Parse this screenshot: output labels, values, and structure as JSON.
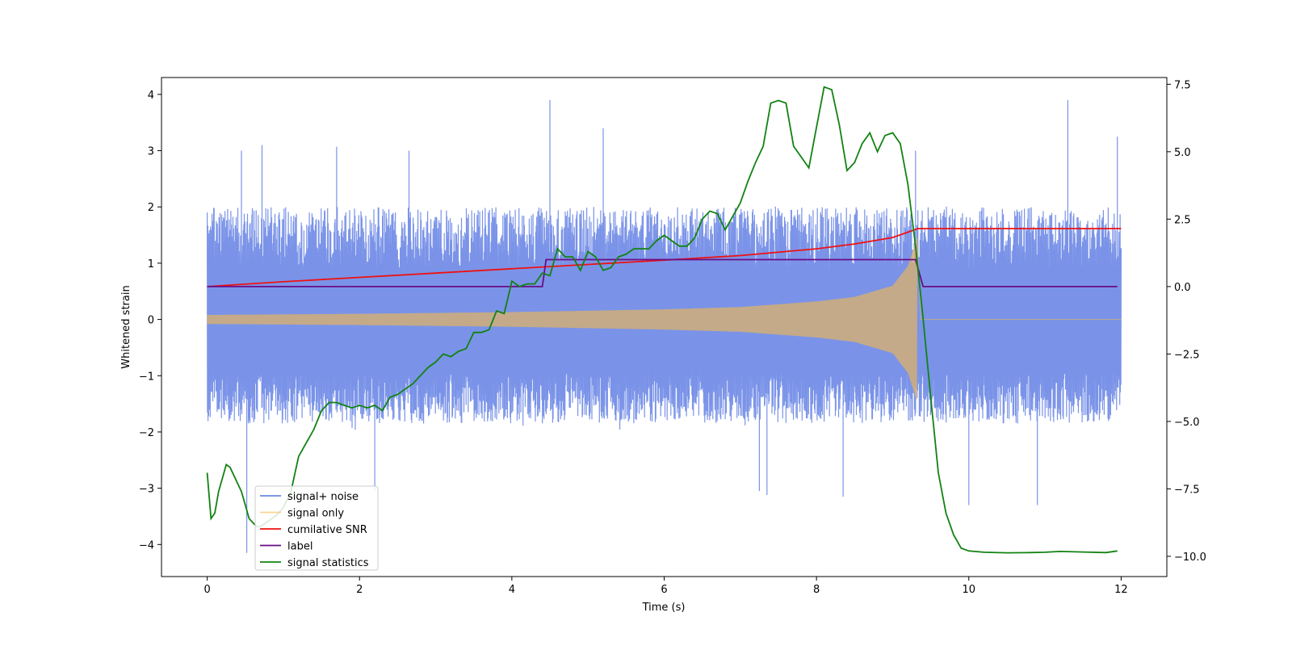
{
  "chart_data": {
    "type": "line",
    "title": "",
    "xlabel": "Time (s)",
    "ylabel": "Whitened strain",
    "y2label": "",
    "xlim": [
      -0.6,
      12.6
    ],
    "ylim": [
      -4.57,
      4.3
    ],
    "y2lim": [
      -10.75,
      7.75
    ],
    "xticks": [
      "0",
      "2",
      "4",
      "6",
      "8",
      "10",
      "12"
    ],
    "yticks": [
      "−4",
      "−3",
      "−2",
      "−1",
      "0",
      "1",
      "2",
      "3",
      "4"
    ],
    "y2ticks": [
      "−10.0",
      "−7.5",
      "−5.0",
      "−2.5",
      "0.0",
      "2.5",
      "5.0",
      "7.5"
    ],
    "grid": false,
    "legend_position": "lower-left",
    "colors": {
      "noise": "#6b87e6",
      "signal": "#f5b949",
      "snr": "#ee1111",
      "label": "#6a0c85",
      "stats": "#128212"
    },
    "series": [
      {
        "name": "signal+ noise",
        "axis": "left",
        "style": "dense-oscillation",
        "x_range": [
          0,
          12
        ],
        "band_typical": [
          -1.7,
          2.1
        ],
        "notable_peaks": [
          [
            0.45,
            3.0
          ],
          [
            0.72,
            3.1
          ],
          [
            1.7,
            3.07
          ],
          [
            2.65,
            3.0
          ],
          [
            4.5,
            3.9
          ],
          [
            5.2,
            3.4
          ],
          [
            9.3,
            3.0
          ],
          [
            11.3,
            3.9
          ],
          [
            11.95,
            3.25
          ]
        ],
        "notable_troughs": [
          [
            0.52,
            -4.15
          ],
          [
            2.2,
            -3.05
          ],
          [
            7.25,
            -3.05
          ],
          [
            7.35,
            -3.12
          ],
          [
            8.35,
            -3.15
          ],
          [
            10.0,
            -3.3
          ],
          [
            10.9,
            -3.3
          ]
        ]
      },
      {
        "name": "signal only",
        "axis": "left",
        "style": "chirp",
        "x_range": [
          0,
          12
        ],
        "merger_time": 9.32,
        "envelope": [
          [
            0,
            0.08
          ],
          [
            2,
            0.1
          ],
          [
            4,
            0.13
          ],
          [
            6,
            0.18
          ],
          [
            7,
            0.22
          ],
          [
            8,
            0.32
          ],
          [
            8.5,
            0.4
          ],
          [
            9.0,
            0.6
          ],
          [
            9.2,
            0.95
          ],
          [
            9.32,
            1.45
          ]
        ],
        "after_merger": 0.0
      },
      {
        "name": "cumilative SNR",
        "axis": "right",
        "style": "line",
        "x": [
          0,
          1,
          2,
          3,
          4,
          5,
          6,
          7,
          8,
          8.5,
          9.0,
          9.33,
          12
        ],
        "y": [
          0.0,
          0.18,
          0.34,
          0.5,
          0.66,
          0.82,
          0.98,
          1.15,
          1.4,
          1.58,
          1.82,
          2.15,
          2.15
        ]
      },
      {
        "name": "label",
        "axis": "right",
        "style": "step",
        "x": [
          0,
          4.4,
          4.45,
          9.3,
          9.4,
          11.95
        ],
        "y": [
          0.0,
          0.0,
          1.0,
          1.0,
          0.0,
          0.0
        ]
      },
      {
        "name": "signal statistics",
        "axis": "right",
        "style": "line",
        "x": [
          0,
          0.05,
          0.1,
          0.15,
          0.25,
          0.3,
          0.35,
          0.45,
          0.5,
          0.55,
          0.65,
          0.7,
          0.8,
          0.9,
          1.0,
          1.1,
          1.2,
          1.3,
          1.4,
          1.5,
          1.6,
          1.7,
          1.8,
          1.9,
          2.0,
          2.1,
          2.2,
          2.3,
          2.4,
          2.5,
          2.6,
          2.7,
          2.8,
          2.9,
          3.0,
          3.1,
          3.2,
          3.3,
          3.4,
          3.5,
          3.6,
          3.7,
          3.8,
          3.9,
          4.0,
          4.1,
          4.2,
          4.3,
          4.4,
          4.5,
          4.6,
          4.7,
          4.8,
          4.9,
          5.0,
          5.1,
          5.2,
          5.3,
          5.4,
          5.5,
          5.6,
          5.7,
          5.8,
          5.9,
          6.0,
          6.1,
          6.2,
          6.3,
          6.4,
          6.5,
          6.6,
          6.7,
          6.8,
          6.9,
          7.0,
          7.1,
          7.2,
          7.3,
          7.4,
          7.5,
          7.6,
          7.7,
          7.8,
          7.9,
          8.0,
          8.1,
          8.2,
          8.3,
          8.4,
          8.5,
          8.6,
          8.7,
          8.8,
          8.9,
          9.0,
          9.1,
          9.2,
          9.3,
          9.4,
          9.5,
          9.6,
          9.7,
          9.8,
          9.9,
          10.0,
          10.2,
          10.5,
          10.8,
          11.0,
          11.2,
          11.5,
          11.8,
          11.95
        ],
        "y": [
          -6.9,
          -8.6,
          -8.4,
          -7.6,
          -6.6,
          -6.7,
          -7.0,
          -7.6,
          -8.1,
          -8.6,
          -8.9,
          -8.9,
          -8.7,
          -8.5,
          -8.2,
          -7.6,
          -6.3,
          -5.8,
          -5.3,
          -4.6,
          -4.3,
          -4.3,
          -4.4,
          -4.5,
          -4.4,
          -4.5,
          -4.4,
          -4.6,
          -4.1,
          -4.0,
          -3.8,
          -3.6,
          -3.3,
          -3.0,
          -2.8,
          -2.5,
          -2.6,
          -2.4,
          -2.3,
          -1.7,
          -1.7,
          -1.6,
          -0.9,
          -1.0,
          0.2,
          0.0,
          0.1,
          0.1,
          0.5,
          0.4,
          1.4,
          1.1,
          1.1,
          0.6,
          1.3,
          1.1,
          0.6,
          0.7,
          1.1,
          1.2,
          1.4,
          1.4,
          1.4,
          1.7,
          1.9,
          1.7,
          1.5,
          1.5,
          1.8,
          2.5,
          2.8,
          2.7,
          2.1,
          2.6,
          3.1,
          3.9,
          4.6,
          5.2,
          6.8,
          6.9,
          6.8,
          5.2,
          4.8,
          4.4,
          5.9,
          7.4,
          7.3,
          6.0,
          4.3,
          4.6,
          5.3,
          5.7,
          5.0,
          5.6,
          5.7,
          5.3,
          3.8,
          1.5,
          -1.2,
          -4.1,
          -6.9,
          -8.4,
          -9.2,
          -9.7,
          -9.8,
          -9.85,
          -9.87,
          -9.86,
          -9.85,
          -9.82,
          -9.84,
          -9.86,
          -9.8
        ]
      }
    ]
  }
}
